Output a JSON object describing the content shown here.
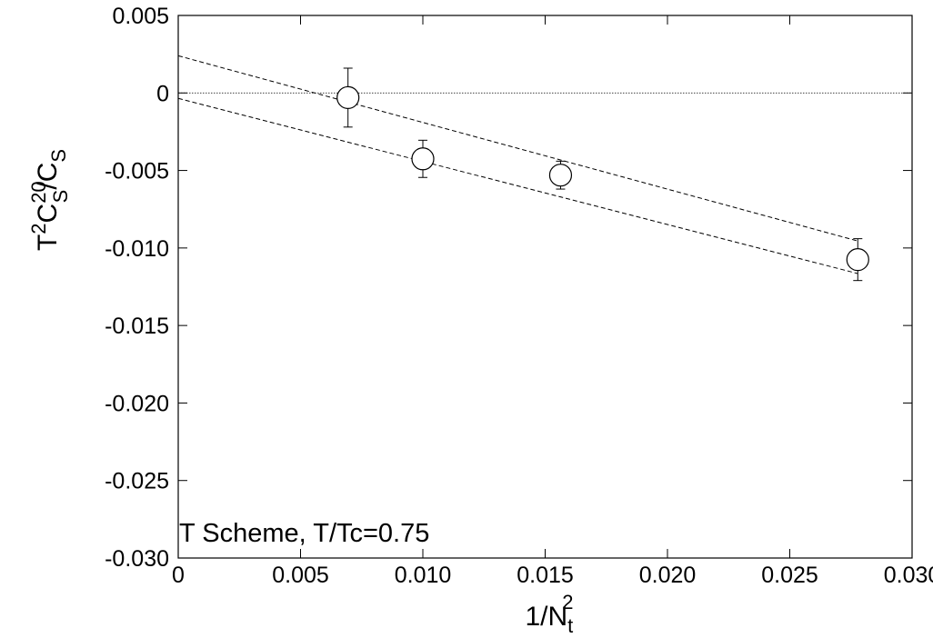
{
  "chart_data": {
    "type": "scatter",
    "annotation": "T Scheme, T/Tc=0.75",
    "xlabel": {
      "base": "1/N",
      "sub": "t",
      "sup": "2"
    },
    "ylabel": {
      "prefix": "T",
      "prefix_sup": "2",
      "mid": "C",
      "mid_sup": "20",
      "mid_sub": "S",
      "suffix": "/C",
      "suffix_sub": "S"
    },
    "xlim": [
      0,
      0.03
    ],
    "ylim": [
      -0.03,
      0.005
    ],
    "xticks": [
      {
        "value": 0,
        "label": "0"
      },
      {
        "value": 0.005,
        "label": "0.005"
      },
      {
        "value": 0.01,
        "label": "0.010"
      },
      {
        "value": 0.015,
        "label": "0.015"
      },
      {
        "value": 0.02,
        "label": "0.020"
      },
      {
        "value": 0.025,
        "label": "0.025"
      },
      {
        "value": 0.03,
        "label": "0.030"
      }
    ],
    "yticks": [
      {
        "value": 0.005,
        "label": "0.005"
      },
      {
        "value": 0,
        "label": "0"
      },
      {
        "value": -0.005,
        "label": "-0.005"
      },
      {
        "value": -0.01,
        "label": "-0.010"
      },
      {
        "value": -0.015,
        "label": "-0.015"
      },
      {
        "value": -0.02,
        "label": "-0.020"
      },
      {
        "value": -0.025,
        "label": "-0.025"
      },
      {
        "value": -0.03,
        "label": "-0.030"
      }
    ],
    "points": [
      {
        "x": 0.00694,
        "y": -0.0003,
        "err": 0.0019
      },
      {
        "x": 0.01,
        "y": -0.00425,
        "err": 0.0012
      },
      {
        "x": 0.01563,
        "y": -0.0053,
        "err": 0.0009
      },
      {
        "x": 0.02778,
        "y": -0.01075,
        "err": 0.00135
      }
    ],
    "fit_lines": [
      {
        "x": [
          0,
          0.02778
        ],
        "y": [
          0.0024,
          -0.00955
        ]
      },
      {
        "x": [
          0,
          0.02778
        ],
        "y": [
          -0.00035,
          -0.01165
        ]
      }
    ],
    "reference_line": {
      "y": 0
    },
    "grid": false
  }
}
